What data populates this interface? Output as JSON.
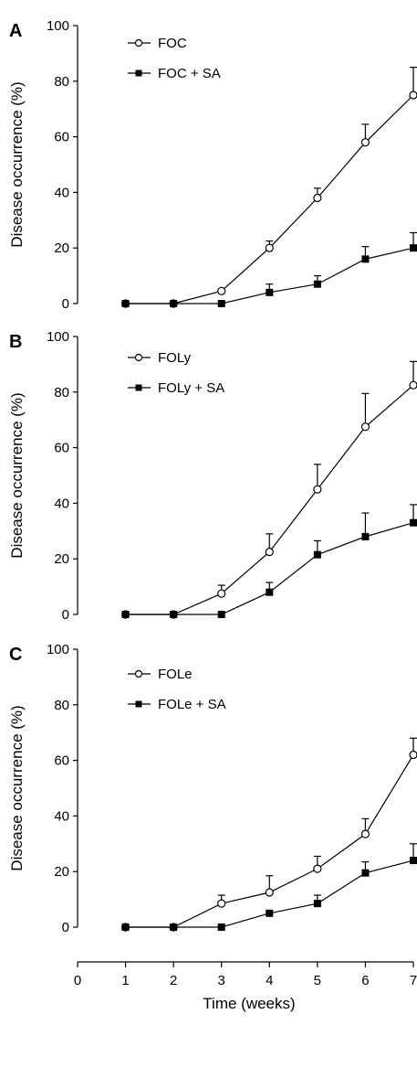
{
  "colors": {
    "line": "#000000",
    "open_marker_fill": "#ffffff",
    "filled_marker": "#000000"
  },
  "xlabel": "Time (weeks)",
  "x_ticks": [
    "0",
    "1",
    "2",
    "3",
    "4",
    "5",
    "6",
    "7"
  ],
  "xlim": [
    0,
    7
  ],
  "chart_data": [
    {
      "type": "line",
      "panel": "A",
      "ylabel": "Disease occurrence (%)",
      "ylim": [
        0,
        100
      ],
      "y_ticks": [
        "0",
        "20",
        "40",
        "60",
        "80",
        "100"
      ],
      "x": [
        1,
        2,
        3,
        4,
        5,
        6,
        7
      ],
      "legend_placement": "top-left",
      "series": [
        {
          "name": "FOC",
          "marker": "open-circle",
          "values": [
            0,
            0,
            4.5,
            20,
            38,
            58,
            75
          ],
          "errors": [
            0,
            0,
            0,
            2.5,
            3.5,
            6.5,
            10
          ]
        },
        {
          "name": "FOC + SA",
          "marker": "filled-square",
          "values": [
            0,
            0,
            0,
            4,
            7,
            16,
            20
          ],
          "errors": [
            0,
            0,
            0,
            3,
            3,
            4.5,
            5.5
          ]
        }
      ]
    },
    {
      "type": "line",
      "panel": "B",
      "ylabel": "Disease occurrence (%)",
      "ylim": [
        0,
        100
      ],
      "y_ticks": [
        "0",
        "20",
        "40",
        "60",
        "80",
        "100"
      ],
      "x": [
        1,
        2,
        3,
        4,
        5,
        6,
        7
      ],
      "legend_placement": "top-left",
      "series": [
        {
          "name": "FOLy",
          "marker": "open-circle",
          "values": [
            0,
            0,
            7.5,
            22.5,
            45,
            67.5,
            82.5
          ],
          "errors": [
            0,
            0,
            3,
            6.5,
            9,
            12,
            8.5
          ]
        },
        {
          "name": "FOLy + SA",
          "marker": "filled-square",
          "values": [
            0,
            0,
            0,
            8,
            21.5,
            28,
            33
          ],
          "errors": [
            0,
            0,
            0,
            3.5,
            5,
            8.5,
            6.5
          ]
        }
      ]
    },
    {
      "type": "line",
      "panel": "C",
      "ylabel": "Disease occurrence (%)",
      "ylim": [
        0,
        100
      ],
      "y_ticks": [
        "0",
        "20",
        "40",
        "60",
        "80",
        "100"
      ],
      "x": [
        1,
        2,
        3,
        4,
        5,
        6,
        7
      ],
      "legend_placement": "top-left",
      "series": [
        {
          "name": "FOLe",
          "marker": "open-circle",
          "values": [
            0,
            0,
            8.5,
            12.5,
            21,
            33.5,
            62
          ],
          "errors": [
            0,
            0,
            3,
            6,
            4.5,
            5.5,
            6
          ]
        },
        {
          "name": "FOLe + SA",
          "marker": "filled-square",
          "values": [
            0,
            0,
            0,
            5,
            8.5,
            19.5,
            24
          ],
          "errors": [
            0,
            0,
            0,
            0,
            3,
            4,
            6
          ]
        }
      ]
    }
  ]
}
